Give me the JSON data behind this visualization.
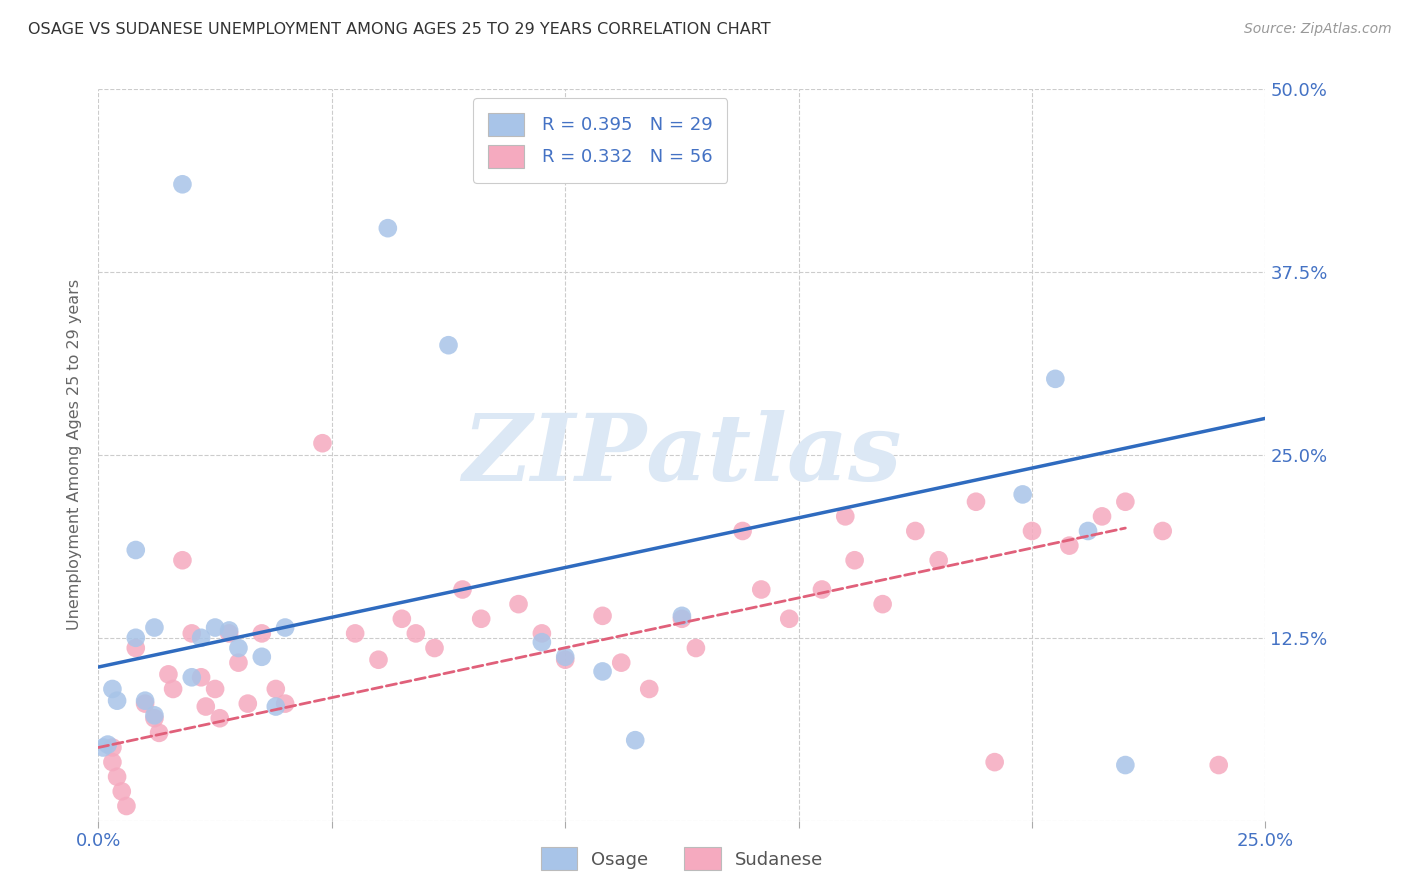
{
  "title": "OSAGE VS SUDANESE UNEMPLOYMENT AMONG AGES 25 TO 29 YEARS CORRELATION CHART",
  "source": "Source: ZipAtlas.com",
  "ylabel": "Unemployment Among Ages 25 to 29 years",
  "xlim": [
    0.0,
    0.25
  ],
  "ylim": [
    0.0,
    0.5
  ],
  "xtick_positions": [
    0.0,
    0.05,
    0.1,
    0.15,
    0.2,
    0.25
  ],
  "xtick_labels": [
    "0.0%",
    "",
    "",
    "",
    "",
    "25.0%"
  ],
  "ytick_positions": [
    0.0,
    0.125,
    0.25,
    0.375,
    0.5
  ],
  "ytick_labels_right": [
    "",
    "12.5%",
    "25.0%",
    "37.5%",
    "50.0%"
  ],
  "osage_R": 0.395,
  "osage_N": 29,
  "sudanese_R": 0.332,
  "sudanese_N": 56,
  "osage_color": "#a8c4e8",
  "sudanese_color": "#f5aabf",
  "osage_line_color": "#2f6bbf",
  "sudanese_line_color": "#e0607a",
  "label_color": "#4472c4",
  "title_color": "#333333",
  "source_color": "#999999",
  "grid_color": "#cccccc",
  "background_color": "#ffffff",
  "osage_x": [
    0.018,
    0.062,
    0.075,
    0.008,
    0.008,
    0.012,
    0.02,
    0.022,
    0.025,
    0.028,
    0.03,
    0.035,
    0.038,
    0.04,
    0.095,
    0.1,
    0.108,
    0.115,
    0.125,
    0.198,
    0.205,
    0.212,
    0.22,
    0.003,
    0.004,
    0.01,
    0.012,
    0.002,
    0.001
  ],
  "osage_y": [
    0.435,
    0.405,
    0.325,
    0.185,
    0.125,
    0.132,
    0.098,
    0.125,
    0.132,
    0.13,
    0.118,
    0.112,
    0.078,
    0.132,
    0.122,
    0.112,
    0.102,
    0.055,
    0.14,
    0.223,
    0.302,
    0.198,
    0.038,
    0.09,
    0.082,
    0.082,
    0.072,
    0.052,
    0.05
  ],
  "sudanese_x": [
    0.003,
    0.003,
    0.004,
    0.005,
    0.006,
    0.008,
    0.01,
    0.012,
    0.013,
    0.015,
    0.016,
    0.018,
    0.02,
    0.022,
    0.023,
    0.025,
    0.026,
    0.028,
    0.03,
    0.032,
    0.035,
    0.038,
    0.04,
    0.048,
    0.055,
    0.06,
    0.065,
    0.068,
    0.072,
    0.078,
    0.082,
    0.09,
    0.095,
    0.1,
    0.108,
    0.112,
    0.118,
    0.125,
    0.128,
    0.138,
    0.142,
    0.148,
    0.155,
    0.162,
    0.168,
    0.175,
    0.18,
    0.188,
    0.192,
    0.2,
    0.208,
    0.215,
    0.22,
    0.228,
    0.16,
    0.24
  ],
  "sudanese_y": [
    0.05,
    0.04,
    0.03,
    0.02,
    0.01,
    0.118,
    0.08,
    0.07,
    0.06,
    0.1,
    0.09,
    0.178,
    0.128,
    0.098,
    0.078,
    0.09,
    0.07,
    0.128,
    0.108,
    0.08,
    0.128,
    0.09,
    0.08,
    0.258,
    0.128,
    0.11,
    0.138,
    0.128,
    0.118,
    0.158,
    0.138,
    0.148,
    0.128,
    0.11,
    0.14,
    0.108,
    0.09,
    0.138,
    0.118,
    0.198,
    0.158,
    0.138,
    0.158,
    0.178,
    0.148,
    0.198,
    0.178,
    0.218,
    0.04,
    0.198,
    0.188,
    0.208,
    0.218,
    0.198,
    0.208,
    0.038
  ],
  "osage_line_x0": 0.0,
  "osage_line_y0": 0.105,
  "osage_line_x1": 0.25,
  "osage_line_y1": 0.275,
  "sudanese_line_x0": 0.0,
  "sudanese_line_y0": 0.05,
  "sudanese_line_x1": 0.22,
  "sudanese_line_y1": 0.2
}
